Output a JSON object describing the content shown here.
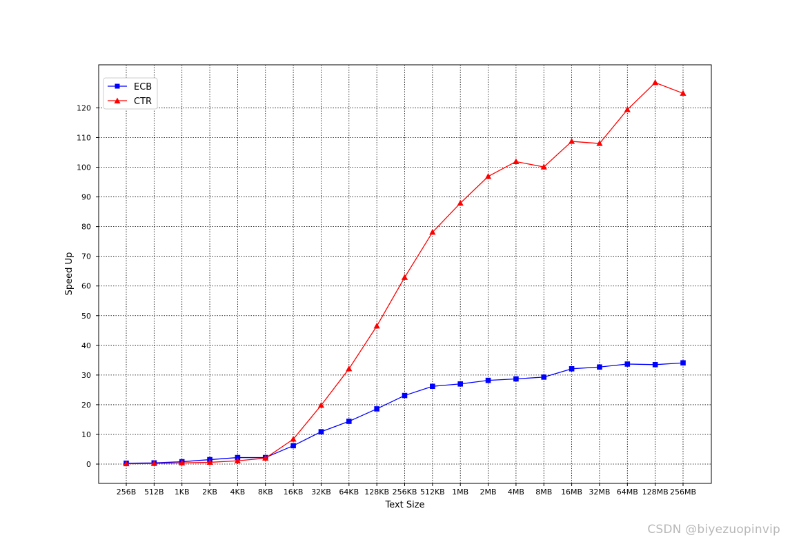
{
  "chart_data": {
    "type": "line",
    "title": "",
    "xlabel": "Text Size",
    "ylabel": "Speed Up",
    "categories": [
      "256B",
      "512B",
      "1KB",
      "2KB",
      "4KB",
      "8KB",
      "16KB",
      "32KB",
      "64KB",
      "128KB",
      "256KB",
      "512KB",
      "1MB",
      "2MB",
      "4MB",
      "8MB",
      "16MB",
      "32MB",
      "64MB",
      "128MB",
      "256MB"
    ],
    "ylim": [
      -6.5,
      134.5
    ],
    "yticks": [
      0,
      10,
      20,
      30,
      40,
      50,
      60,
      70,
      80,
      90,
      100,
      110,
      120
    ],
    "grid": true,
    "legend_position": "top-left",
    "series": [
      {
        "name": "ECB",
        "color": "#0000ff",
        "marker": "square",
        "values": [
          0.3,
          0.4,
          0.8,
          1.5,
          2.2,
          2.2,
          6.2,
          10.9,
          14.4,
          18.6,
          23.1,
          26.2,
          27.0,
          28.2,
          28.7,
          29.3,
          32.1,
          32.7,
          33.7,
          33.5,
          34.1
        ]
      },
      {
        "name": "CTR",
        "color": "#ff0000",
        "marker": "triangle",
        "values": [
          0.1,
          0.2,
          0.4,
          0.6,
          1.1,
          2.0,
          8.4,
          19.8,
          32.1,
          46.5,
          62.9,
          78.1,
          87.9,
          96.9,
          101.9,
          100.1,
          108.7,
          108.0,
          119.4,
          128.5,
          124.9
        ]
      }
    ]
  },
  "watermark": "CSDN @biyezuopinvip"
}
